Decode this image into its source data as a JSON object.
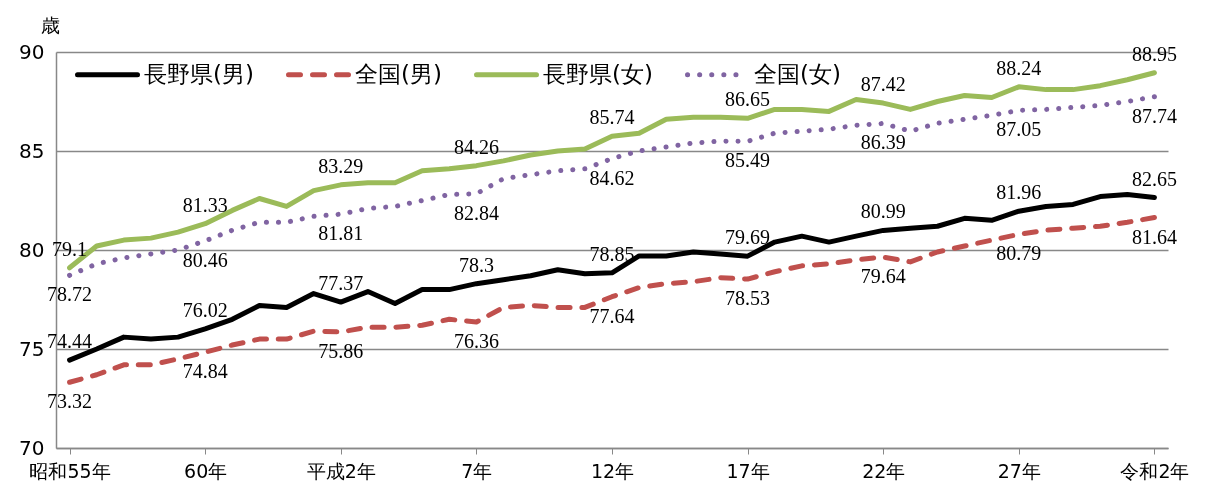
{
  "chart_data": {
    "type": "line",
    "ylabel": "歳",
    "categories": [
      "昭和55年",
      null,
      null,
      null,
      null,
      "60年",
      null,
      null,
      null,
      null,
      "平成2年",
      null,
      null,
      null,
      null,
      "7年",
      null,
      null,
      null,
      null,
      "12年",
      null,
      null,
      null,
      null,
      "17年",
      null,
      null,
      null,
      null,
      "22年",
      null,
      null,
      null,
      null,
      "27年",
      null,
      null,
      null,
      null,
      "令和2年"
    ],
    "ylim": [
      70,
      90
    ],
    "yticks": [
      70,
      75,
      80,
      85,
      90
    ],
    "grid": "y",
    "legend": "top left",
    "series": [
      {
        "name": "長野県(男)",
        "color": "#000000",
        "line_style": "solid",
        "values": [
          74.44,
          75.0,
          75.6,
          75.5,
          75.6,
          76.02,
          76.5,
          77.2,
          77.1,
          77.8,
          77.37,
          77.9,
          77.3,
          78.0,
          78.0,
          78.3,
          78.5,
          78.7,
          79.0,
          78.8,
          78.85,
          79.7,
          79.7,
          79.9,
          79.8,
          79.69,
          80.4,
          80.7,
          80.4,
          80.7,
          80.99,
          81.1,
          81.2,
          81.6,
          81.5,
          81.96,
          82.2,
          82.3,
          82.7,
          82.8,
          82.65
        ],
        "value_labels": [
          "74.44",
          null,
          null,
          null,
          null,
          "76.02",
          null,
          null,
          null,
          null,
          "77.37",
          null,
          null,
          null,
          null,
          "78.3",
          null,
          null,
          null,
          null,
          "78.85",
          null,
          null,
          null,
          null,
          "79.69",
          null,
          null,
          null,
          null,
          "80.99",
          null,
          null,
          null,
          null,
          "81.96",
          null,
          null,
          null,
          null,
          "82.65"
        ]
      },
      {
        "name": "全国(男)",
        "color": "#c0504d",
        "line_style": "dashed",
        "values": [
          73.32,
          73.7,
          74.2,
          74.2,
          74.5,
          74.84,
          75.2,
          75.5,
          75.5,
          75.9,
          75.86,
          76.1,
          76.1,
          76.2,
          76.5,
          76.36,
          77.1,
          77.2,
          77.1,
          77.1,
          77.64,
          78.1,
          78.3,
          78.4,
          78.6,
          78.53,
          78.9,
          79.2,
          79.3,
          79.5,
          79.64,
          79.4,
          79.9,
          80.2,
          80.5,
          80.79,
          81.0,
          81.1,
          81.2,
          81.4,
          81.64
        ],
        "value_labels": [
          "73.32",
          null,
          null,
          null,
          null,
          "74.84",
          null,
          null,
          null,
          null,
          "75.86",
          null,
          null,
          null,
          null,
          "76.36",
          null,
          null,
          null,
          null,
          "77.64",
          null,
          null,
          null,
          null,
          "78.53",
          null,
          null,
          null,
          null,
          "79.64",
          null,
          null,
          null,
          null,
          "80.79",
          null,
          null,
          null,
          null,
          "81.64"
        ]
      },
      {
        "name": "長野県(女)",
        "color": "#9bbb59",
        "line_style": "solid",
        "values": [
          79.1,
          80.2,
          80.5,
          80.6,
          80.9,
          81.33,
          82.0,
          82.6,
          82.2,
          83.0,
          83.29,
          83.4,
          83.4,
          84.0,
          84.1,
          84.26,
          84.5,
          84.8,
          85.0,
          85.1,
          85.74,
          85.9,
          86.6,
          86.7,
          86.7,
          86.65,
          87.1,
          87.1,
          87.0,
          87.6,
          87.42,
          87.1,
          87.5,
          87.8,
          87.7,
          88.24,
          88.1,
          88.1,
          88.3,
          88.6,
          88.95
        ],
        "value_labels": [
          "79.1",
          null,
          null,
          null,
          null,
          "81.33",
          null,
          null,
          null,
          null,
          "83.29",
          null,
          null,
          null,
          null,
          "84.26",
          null,
          null,
          null,
          null,
          "85.74",
          null,
          null,
          null,
          null,
          "86.65",
          null,
          null,
          null,
          null,
          "87.42",
          null,
          null,
          null,
          null,
          "88.24",
          null,
          null,
          null,
          null,
          "88.95"
        ]
      },
      {
        "name": "全国(女)",
        "color": "#8064a2",
        "line_style": "dotted",
        "values": [
          78.72,
          79.3,
          79.6,
          79.8,
          80.0,
          80.46,
          81.0,
          81.4,
          81.4,
          81.7,
          81.81,
          82.1,
          82.2,
          82.5,
          82.8,
          82.84,
          83.6,
          83.8,
          84.0,
          84.1,
          84.62,
          85.0,
          85.2,
          85.4,
          85.5,
          85.49,
          85.9,
          86.0,
          86.1,
          86.3,
          86.39,
          86.0,
          86.4,
          86.6,
          86.8,
          87.05,
          87.1,
          87.2,
          87.3,
          87.5,
          87.74
        ],
        "value_labels": [
          "78.72",
          null,
          null,
          null,
          null,
          "80.46",
          null,
          null,
          null,
          null,
          "81.81",
          null,
          null,
          null,
          null,
          "82.84",
          null,
          null,
          null,
          null,
          "84.62",
          null,
          null,
          null,
          null,
          "85.49",
          null,
          null,
          null,
          null,
          "86.39",
          null,
          null,
          null,
          null,
          "87.05",
          null,
          null,
          null,
          null,
          "87.74"
        ]
      }
    ]
  }
}
